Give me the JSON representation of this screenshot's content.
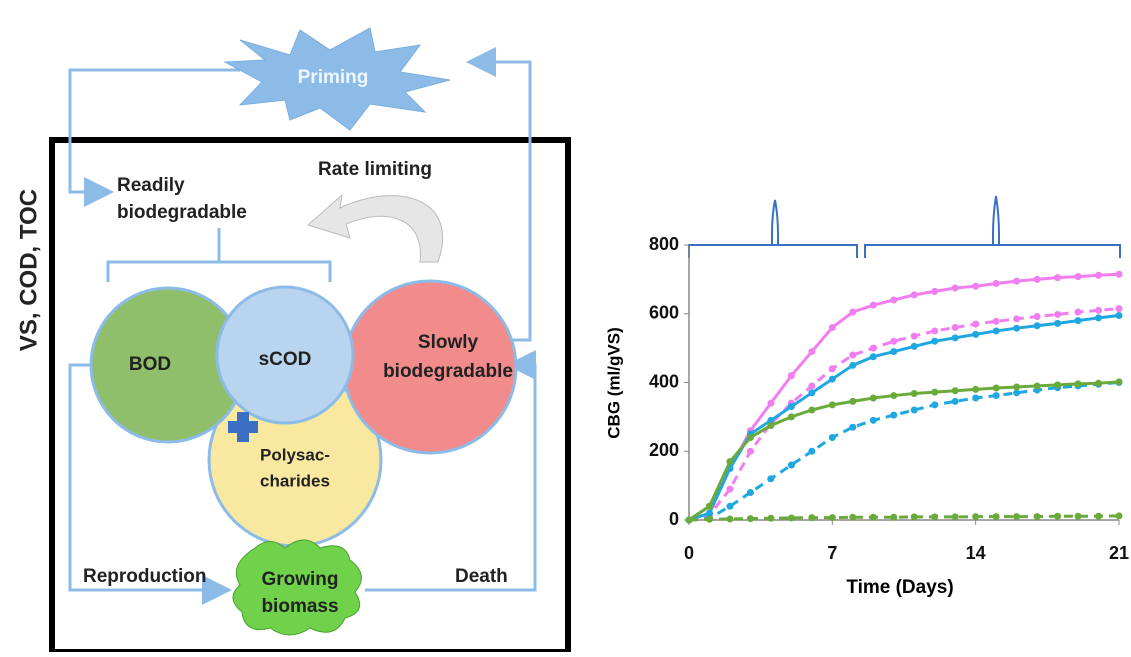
{
  "diagram": {
    "side_label": "VS, COD, TOC",
    "priming": "Priming",
    "readily": [
      "Readily",
      "biodegradable"
    ],
    "rate_limiting": "Rate limiting",
    "bod": "BOD",
    "scod": "sCOD",
    "slowly": [
      "Slowly",
      "biodegradable"
    ],
    "polysaccharides": [
      "Polysac-",
      "charides"
    ],
    "reproduction": "Reproduction",
    "biomass": [
      "Growing",
      "biomass"
    ],
    "death": "Death"
  },
  "chart_data": {
    "type": "line",
    "x": [
      0,
      1,
      2,
      3,
      4,
      5,
      6,
      7,
      8,
      9,
      10,
      11,
      12,
      13,
      14,
      15,
      16,
      17,
      18,
      19,
      20,
      21
    ],
    "xlabel": "Time (Days)",
    "ylabel": "CBG (ml/gVS)",
    "xlim": [
      0,
      21
    ],
    "xticks": [
      0,
      7,
      14,
      21
    ],
    "ylim": [
      0,
      800
    ],
    "yticks": [
      0,
      200,
      400,
      600,
      800
    ],
    "series": [
      {
        "color": "#f07ef0",
        "dashed": false,
        "values": [
          0,
          40,
          150,
          260,
          340,
          420,
          490,
          560,
          605,
          625,
          640,
          655,
          665,
          675,
          680,
          688,
          695,
          700,
          705,
          708,
          712,
          715
        ]
      },
      {
        "color": "#f07ef0",
        "dashed": true,
        "values": [
          0,
          15,
          90,
          200,
          280,
          340,
          390,
          440,
          480,
          500,
          520,
          535,
          550,
          560,
          570,
          578,
          585,
          592,
          598,
          605,
          610,
          615
        ]
      },
      {
        "color": "#1ea7e0",
        "dashed": false,
        "values": [
          0,
          20,
          150,
          250,
          290,
          330,
          370,
          410,
          450,
          475,
          490,
          505,
          520,
          530,
          540,
          550,
          558,
          565,
          572,
          580,
          588,
          595
        ]
      },
      {
        "color": "#1ea7e0",
        "dashed": true,
        "values": [
          0,
          5,
          40,
          80,
          120,
          160,
          200,
          240,
          270,
          290,
          305,
          320,
          335,
          345,
          355,
          362,
          370,
          378,
          385,
          390,
          395,
          400
        ]
      },
      {
        "color": "#6aaa3a",
        "dashed": false,
        "values": [
          0,
          40,
          170,
          240,
          275,
          300,
          320,
          335,
          345,
          355,
          362,
          368,
          372,
          376,
          380,
          384,
          387,
          390,
          393,
          396,
          398,
          402
        ]
      },
      {
        "color": "#6aaa3a",
        "dashed": true,
        "values": [
          0,
          2,
          3,
          4,
          5,
          6,
          7,
          7,
          8,
          8,
          8,
          9,
          9,
          9,
          10,
          10,
          10,
          10,
          11,
          11,
          11,
          12
        ]
      }
    ]
  }
}
